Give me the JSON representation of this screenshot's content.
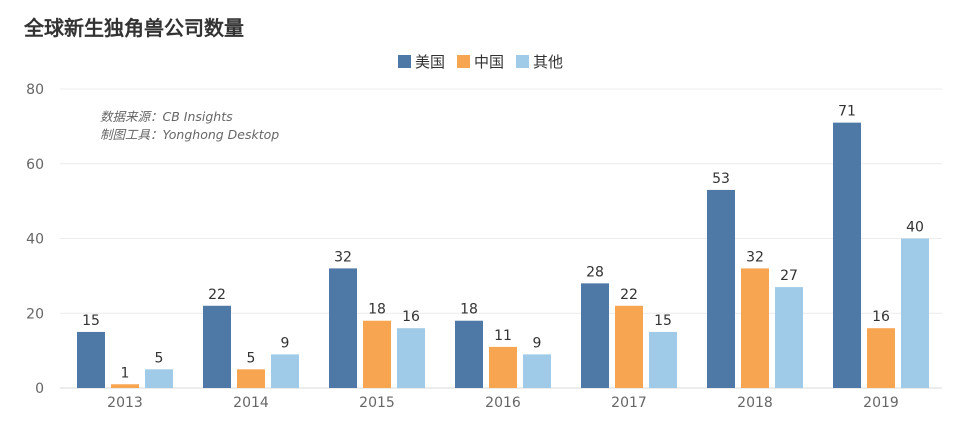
{
  "title": "全球新生独角兽公司数量",
  "notes": [
    "数据来源：CB Insights",
    "制图工具：Yonghong Desktop"
  ],
  "colors": {
    "美国": "#4e79a7",
    "中国": "#f8a552",
    "其他": "#a0cbe8"
  },
  "chart_data": {
    "type": "bar",
    "categories": [
      "2013",
      "2014",
      "2015",
      "2016",
      "2017",
      "2018",
      "2019"
    ],
    "series": [
      {
        "name": "美国",
        "values": [
          15,
          22,
          32,
          18,
          28,
          53,
          71
        ]
      },
      {
        "name": "中国",
        "values": [
          1,
          5,
          18,
          11,
          22,
          32,
          16
        ]
      },
      {
        "name": "其他",
        "values": [
          5,
          9,
          16,
          9,
          15,
          27,
          40
        ]
      }
    ],
    "yticks": [
      0,
      20,
      40,
      60,
      80
    ],
    "ylim": [
      0,
      80
    ],
    "legend": "top-center",
    "grid": true
  }
}
